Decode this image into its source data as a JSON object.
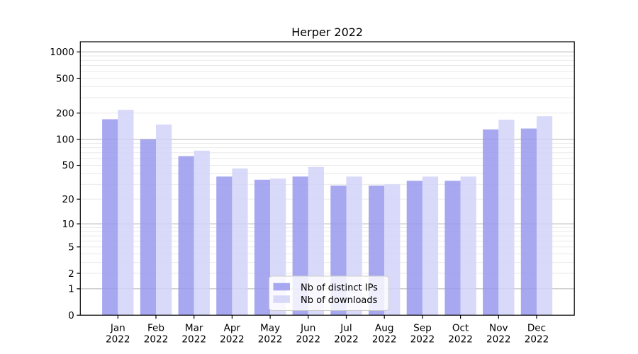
{
  "title": "Herper 2022",
  "colors": {
    "series_ips": "#9999ee",
    "series_downloads": "#d2d2f8",
    "major_grid": "#b3b3b3",
    "minor_grid": "#e9e9e9",
    "axis": "#000000",
    "legend_border": "#cccccc",
    "background": "#ffffff"
  },
  "chart_data": {
    "type": "bar",
    "title": "Herper 2022",
    "categories": [
      "Jan 2022",
      "Feb 2022",
      "Mar 2022",
      "Apr 2022",
      "May 2022",
      "Jun 2022",
      "Jul 2022",
      "Aug 2022",
      "Sep 2022",
      "Oct 2022",
      "Nov 2022",
      "Dec 2022"
    ],
    "series": [
      {
        "name": "Nb of distinct IPs",
        "color": "#9999ee",
        "values": [
          170,
          100,
          64,
          37,
          34,
          37,
          29,
          29,
          33,
          33,
          130,
          133
        ]
      },
      {
        "name": "Nb of downloads",
        "color": "#d2d2f8",
        "values": [
          218,
          148,
          74,
          46,
          35,
          48,
          37,
          30,
          37,
          37,
          168,
          184
        ]
      }
    ],
    "yscale": "log1p",
    "y_ticks": [
      0,
      1,
      2,
      5,
      10,
      20,
      50,
      100,
      200,
      500,
      1000
    ],
    "minor_y_gridlines": [
      2,
      3,
      4,
      5,
      6,
      7,
      8,
      9,
      20,
      30,
      40,
      50,
      60,
      70,
      80,
      90,
      200,
      300,
      400,
      500,
      600,
      700,
      800,
      900
    ],
    "major_y_gridlines": [
      1,
      10,
      100,
      1000
    ],
    "ylim": [
      0,
      1300
    ],
    "xlabel": "",
    "ylabel": "",
    "grid": true,
    "legend_position": "lower center"
  }
}
